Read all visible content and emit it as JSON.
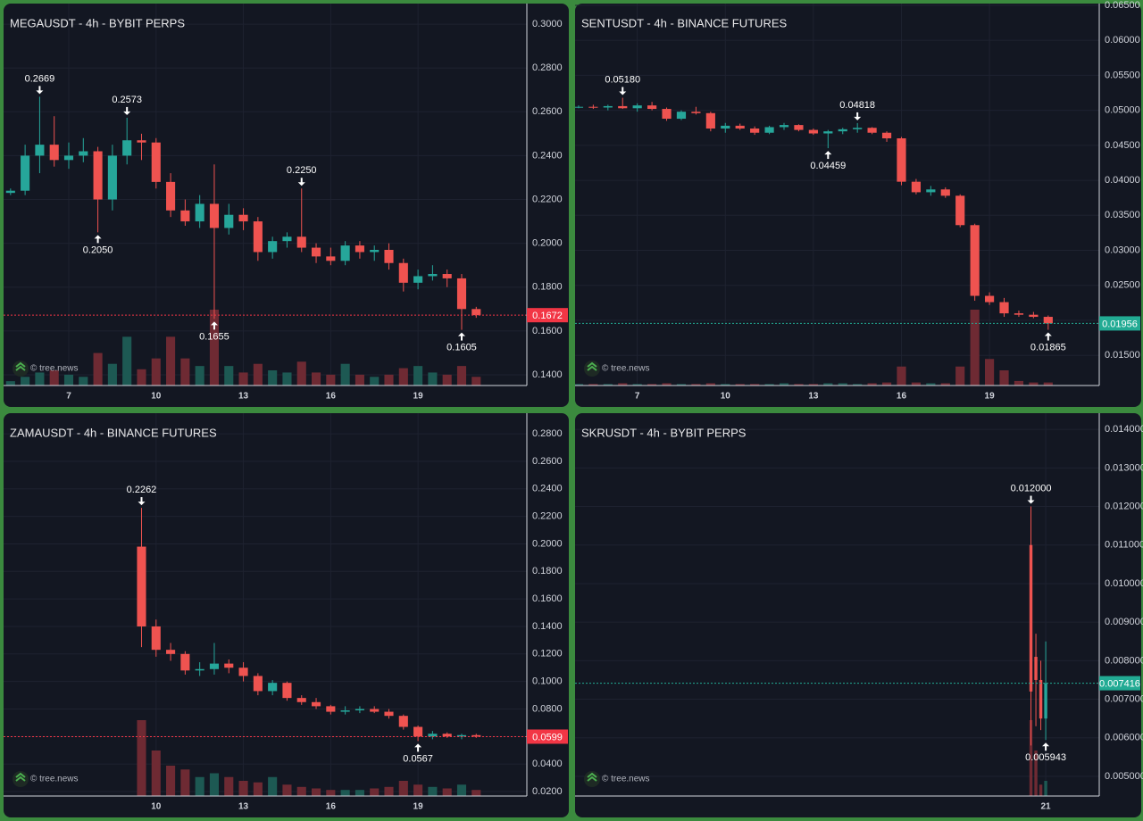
{
  "chart_data": [
    {
      "type": "candlestick",
      "title": "MEGAUSDT - 4h - BYBIT PERPS",
      "watermark": "© tree.news",
      "grid": true,
      "up_color": "#26a69a",
      "down_color": "#ef5350",
      "x": [
        5,
        5.5,
        6,
        6.5,
        7,
        7.5,
        8,
        8.5,
        9,
        9.5,
        10,
        10.5,
        11,
        11.5,
        12,
        12.5,
        13,
        13.5,
        14,
        14.5,
        15,
        15.5,
        16,
        16.5,
        17,
        17.5,
        18,
        18.5,
        19,
        19.5,
        20,
        20.5,
        21
      ],
      "open": [
        0.223,
        0.224,
        0.24,
        0.245,
        0.238,
        0.24,
        0.242,
        0.22,
        0.24,
        0.247,
        0.246,
        0.228,
        0.215,
        0.21,
        0.218,
        0.207,
        0.213,
        0.21,
        0.196,
        0.201,
        0.203,
        0.198,
        0.194,
        0.192,
        0.199,
        0.196,
        0.197,
        0.191,
        0.182,
        0.185,
        0.186,
        0.184,
        0.17
      ],
      "high": [
        0.225,
        0.245,
        0.2669,
        0.258,
        0.246,
        0.248,
        0.244,
        0.245,
        0.2573,
        0.25,
        0.248,
        0.232,
        0.22,
        0.222,
        0.236,
        0.218,
        0.216,
        0.212,
        0.203,
        0.205,
        0.225,
        0.2,
        0.198,
        0.201,
        0.201,
        0.199,
        0.2,
        0.193,
        0.188,
        0.19,
        0.188,
        0.186,
        0.171
      ],
      "low": [
        0.222,
        0.222,
        0.232,
        0.235,
        0.234,
        0.237,
        0.205,
        0.215,
        0.236,
        0.238,
        0.225,
        0.212,
        0.208,
        0.207,
        0.1655,
        0.204,
        0.206,
        0.192,
        0.193,
        0.198,
        0.196,
        0.191,
        0.19,
        0.19,
        0.193,
        0.192,
        0.188,
        0.178,
        0.179,
        0.183,
        0.18,
        0.1605,
        0.166
      ],
      "close": [
        0.224,
        0.24,
        0.245,
        0.238,
        0.24,
        0.242,
        0.22,
        0.24,
        0.247,
        0.246,
        0.228,
        0.215,
        0.21,
        0.218,
        0.207,
        0.213,
        0.21,
        0.196,
        0.201,
        0.203,
        0.198,
        0.194,
        0.192,
        0.199,
        0.196,
        0.197,
        0.191,
        0.182,
        0.185,
        0.186,
        0.184,
        0.17,
        0.1672
      ],
      "volume": [
        4,
        8,
        12,
        14,
        10,
        8,
        30,
        20,
        45,
        15,
        25,
        45,
        25,
        18,
        70,
        18,
        12,
        20,
        14,
        12,
        22,
        12,
        10,
        20,
        10,
        8,
        10,
        16,
        18,
        12,
        10,
        18,
        8
      ],
      "xlim": [
        4.76,
        22.74
      ],
      "xticks": [
        7,
        10,
        13,
        16,
        19
      ],
      "ylim": [
        0.1351,
        0.3094
      ],
      "yticks": [
        {
          "value": 0.3,
          "label": "0.3000"
        },
        {
          "value": 0.28,
          "label": "0.2800"
        },
        {
          "value": 0.26,
          "label": "0.2600"
        },
        {
          "value": 0.24,
          "label": "0.2400"
        },
        {
          "value": 0.22,
          "label": "0.2200"
        },
        {
          "value": 0.2,
          "label": "0.2000"
        },
        {
          "value": 0.18,
          "label": "0.1800"
        },
        {
          "value": 0.16,
          "label": "0.1600"
        },
        {
          "value": 0.14,
          "label": "0.1400"
        }
      ],
      "annotations": [
        {
          "x": 6,
          "value": 0.2669,
          "label": "0.2669",
          "position": "above"
        },
        {
          "x": 9,
          "value": 0.2573,
          "label": "0.2573",
          "position": "above"
        },
        {
          "x": 8,
          "value": 0.205,
          "label": "0.2050",
          "position": "below"
        },
        {
          "x": 15,
          "value": 0.225,
          "label": "0.2250",
          "position": "above"
        },
        {
          "x": 12,
          "value": 0.1655,
          "label": "0.1655",
          "position": "below"
        },
        {
          "x": 20.5,
          "value": 0.1605,
          "label": "0.1605",
          "position": "below"
        }
      ],
      "last_price": {
        "value": 0.1672,
        "label": "0.1672",
        "color": "#f23645"
      }
    },
    {
      "type": "candlestick",
      "title": "SENTUSDT - 4h - BINANCE FUTURES",
      "watermark": "© tree.news",
      "grid": true,
      "up_color": "#26a69a",
      "down_color": "#ef5350",
      "x": [
        5,
        5.5,
        6,
        6.5,
        7,
        7.5,
        8,
        8.5,
        9,
        9.5,
        10,
        10.5,
        11,
        11.5,
        12,
        12.5,
        13,
        13.5,
        14,
        14.5,
        15,
        15.5,
        16,
        16.5,
        17,
        17.5,
        18,
        18.5,
        19,
        19.5,
        20,
        20.5,
        21
      ],
      "open": [
        0.0505,
        0.0505,
        0.0504,
        0.0506,
        0.0503,
        0.0507,
        0.0502,
        0.0488,
        0.0498,
        0.0496,
        0.0474,
        0.0478,
        0.0474,
        0.0468,
        0.0476,
        0.0479,
        0.0472,
        0.0467,
        0.047,
        0.0473,
        0.0475,
        0.0468,
        0.046,
        0.0398,
        0.0383,
        0.0387,
        0.0378,
        0.0336,
        0.0235,
        0.0226,
        0.021,
        0.0208,
        0.0205
      ],
      "high": [
        0.0507,
        0.0508,
        0.0508,
        0.0518,
        0.051,
        0.0512,
        0.0504,
        0.05,
        0.0505,
        0.0498,
        0.0482,
        0.0481,
        0.0477,
        0.0478,
        0.0482,
        0.048,
        0.0474,
        0.0472,
        0.0475,
        0.04818,
        0.0476,
        0.047,
        0.0462,
        0.0402,
        0.0392,
        0.039,
        0.038,
        0.0338,
        0.024,
        0.0232,
        0.0214,
        0.0212,
        0.0207
      ],
      "low": [
        0.0503,
        0.0502,
        0.05,
        0.0502,
        0.0498,
        0.05,
        0.0485,
        0.0486,
        0.0494,
        0.047,
        0.0468,
        0.0472,
        0.0465,
        0.0466,
        0.0472,
        0.047,
        0.0465,
        0.04459,
        0.0466,
        0.0468,
        0.0466,
        0.0455,
        0.0393,
        0.038,
        0.0378,
        0.0375,
        0.0333,
        0.0228,
        0.0222,
        0.0205,
        0.0205,
        0.0203,
        0.01865
      ],
      "close": [
        0.0505,
        0.0504,
        0.0506,
        0.0503,
        0.0507,
        0.0502,
        0.0488,
        0.0498,
        0.0496,
        0.0474,
        0.0478,
        0.0474,
        0.0468,
        0.0476,
        0.0479,
        0.0472,
        0.0467,
        0.047,
        0.0473,
        0.0475,
        0.0468,
        0.046,
        0.0398,
        0.0383,
        0.0387,
        0.0378,
        0.0336,
        0.0235,
        0.0226,
        0.021,
        0.0208,
        0.0205,
        0.01956
      ],
      "volume": [
        2,
        2,
        2,
        3,
        2,
        2,
        3,
        2,
        2,
        3,
        2,
        2,
        2,
        2,
        3,
        2,
        2,
        3,
        3,
        2,
        3,
        4,
        25,
        4,
        3,
        3,
        25,
        100,
        35,
        20,
        6,
        4,
        4
      ],
      "xlim": [
        4.88,
        22.74
      ],
      "xticks": [
        7,
        10,
        13,
        16,
        19
      ],
      "ylim": [
        0.01069,
        0.06525
      ],
      "yticks": [
        {
          "value": 0.065,
          "label": "0.06500"
        },
        {
          "value": 0.06,
          "label": "0.06000"
        },
        {
          "value": 0.055,
          "label": "0.05500"
        },
        {
          "value": 0.05,
          "label": "0.05000"
        },
        {
          "value": 0.045,
          "label": "0.04500"
        },
        {
          "value": 0.04,
          "label": "0.04000"
        },
        {
          "value": 0.035,
          "label": "0.03500"
        },
        {
          "value": 0.03,
          "label": "0.03000"
        },
        {
          "value": 0.025,
          "label": "0.02500"
        },
        {
          "value": 0.02,
          "label": "0.02000"
        },
        {
          "value": 0.015,
          "label": "0.01500"
        }
      ],
      "annotations": [
        {
          "x": 6.5,
          "value": 0.0518,
          "label": "0.05180",
          "position": "above"
        },
        {
          "x": 14.5,
          "value": 0.04818,
          "label": "0.04818",
          "position": "above"
        },
        {
          "x": 13.5,
          "value": 0.04459,
          "label": "0.04459",
          "position": "below"
        },
        {
          "x": 21,
          "value": 0.01865,
          "label": "0.01865",
          "position": "below"
        }
      ],
      "last_price": {
        "value": 0.01956,
        "label": "0.01956",
        "color": "#22ab94"
      }
    },
    {
      "type": "candlestick",
      "title": "ZAMAUSDT - 4h - BINANCE FUTURES",
      "watermark": "© tree.news",
      "grid": true,
      "up_color": "#26a69a",
      "down_color": "#ef5350",
      "x": [
        9.5,
        10,
        10.5,
        11,
        11.5,
        12,
        12.5,
        13,
        13.5,
        14,
        14.5,
        15,
        15.5,
        16,
        16.5,
        17,
        17.5,
        18,
        18.5,
        19,
        19.5,
        20,
        20.5,
        21
      ],
      "open": [
        0.198,
        0.14,
        0.123,
        0.12,
        0.108,
        0.109,
        0.113,
        0.11,
        0.104,
        0.093,
        0.099,
        0.088,
        0.085,
        0.082,
        0.078,
        0.079,
        0.08,
        0.078,
        0.075,
        0.067,
        0.06,
        0.062,
        0.06,
        0.061
      ],
      "high": [
        0.2262,
        0.145,
        0.128,
        0.122,
        0.114,
        0.128,
        0.116,
        0.114,
        0.106,
        0.101,
        0.1,
        0.09,
        0.088,
        0.083,
        0.082,
        0.082,
        0.082,
        0.08,
        0.076,
        0.068,
        0.064,
        0.063,
        0.062,
        0.062
      ],
      "low": [
        0.125,
        0.118,
        0.115,
        0.105,
        0.104,
        0.105,
        0.106,
        0.1,
        0.09,
        0.09,
        0.086,
        0.083,
        0.08,
        0.076,
        0.076,
        0.077,
        0.077,
        0.073,
        0.065,
        0.0567,
        0.058,
        0.059,
        0.058,
        0.059
      ],
      "close": [
        0.14,
        0.123,
        0.12,
        0.108,
        0.109,
        0.113,
        0.11,
        0.104,
        0.093,
        0.099,
        0.088,
        0.085,
        0.082,
        0.078,
        0.079,
        0.08,
        0.078,
        0.075,
        0.067,
        0.06,
        0.062,
        0.06,
        0.061,
        0.0599
      ],
      "volume": [
        100,
        60,
        40,
        35,
        25,
        30,
        25,
        20,
        18,
        25,
        15,
        12,
        10,
        8,
        8,
        8,
        10,
        12,
        20,
        15,
        12,
        10,
        15,
        8
      ],
      "xlim": [
        4.76,
        22.74
      ],
      "xticks": [
        10,
        13,
        16,
        19
      ],
      "ylim": [
        0.01675,
        0.295
      ],
      "yticks": [
        {
          "value": 0.28,
          "label": "0.2800"
        },
        {
          "value": 0.26,
          "label": "0.2600"
        },
        {
          "value": 0.24,
          "label": "0.2400"
        },
        {
          "value": 0.22,
          "label": "0.2200"
        },
        {
          "value": 0.2,
          "label": "0.2000"
        },
        {
          "value": 0.18,
          "label": "0.1800"
        },
        {
          "value": 0.16,
          "label": "0.1600"
        },
        {
          "value": 0.14,
          "label": "0.1400"
        },
        {
          "value": 0.12,
          "label": "0.1200"
        },
        {
          "value": 0.1,
          "label": "0.1000"
        },
        {
          "value": 0.08,
          "label": "0.0800"
        },
        {
          "value": 0.06,
          "label": "0.0600"
        },
        {
          "value": 0.04,
          "label": "0.0400"
        },
        {
          "value": 0.02,
          "label": "0.0200"
        }
      ],
      "annotations": [
        {
          "x": 9.5,
          "value": 0.2262,
          "label": "0.2262",
          "position": "above"
        },
        {
          "x": 19,
          "value": 0.0567,
          "label": "0.0567",
          "position": "below"
        }
      ],
      "last_price": {
        "value": 0.0599,
        "label": "0.0599",
        "color": "#f23645"
      }
    },
    {
      "type": "candlestick",
      "title": "SKRUSDT - 4h - BYBIT PERPS",
      "watermark": "© tree.news",
      "grid": true,
      "up_color": "#26a69a",
      "down_color": "#ef5350",
      "x": [
        20.5,
        20.667,
        20.833,
        21
      ],
      "open": [
        0.011,
        0.0081,
        0.0075,
        0.0065
      ],
      "high": [
        0.012,
        0.0087,
        0.008,
        0.0085
      ],
      "low": [
        0.0058,
        0.0063,
        0.0062,
        0.005943
      ],
      "close": [
        0.0072,
        0.0075,
        0.0065,
        0.007416
      ],
      "volume": [
        100,
        60,
        15,
        20
      ],
      "xlim": [
        5.08,
        22.81
      ],
      "xticks": [
        21
      ],
      "ylim": [
        0.00449,
        0.01442
      ],
      "yticks": [
        {
          "value": 0.014,
          "label": "0.014000"
        },
        {
          "value": 0.013,
          "label": "0.013000"
        },
        {
          "value": 0.012,
          "label": "0.012000"
        },
        {
          "value": 0.011,
          "label": "0.011000"
        },
        {
          "value": 0.01,
          "label": "0.010000"
        },
        {
          "value": 0.009,
          "label": "0.009000"
        },
        {
          "value": 0.008,
          "label": "0.008000"
        },
        {
          "value": 0.007,
          "label": "0.007000"
        },
        {
          "value": 0.006,
          "label": "0.006000"
        },
        {
          "value": 0.005,
          "label": "0.005000"
        }
      ],
      "annotations": [
        {
          "x": 20.5,
          "value": 0.012,
          "label": "0.012000",
          "position": "above"
        },
        {
          "x": 21,
          "value": 0.005943,
          "label": "0.005943",
          "position": "below"
        }
      ],
      "last_price": {
        "value": 0.007416,
        "label": "0.007416",
        "color": "#22ab94"
      }
    }
  ]
}
